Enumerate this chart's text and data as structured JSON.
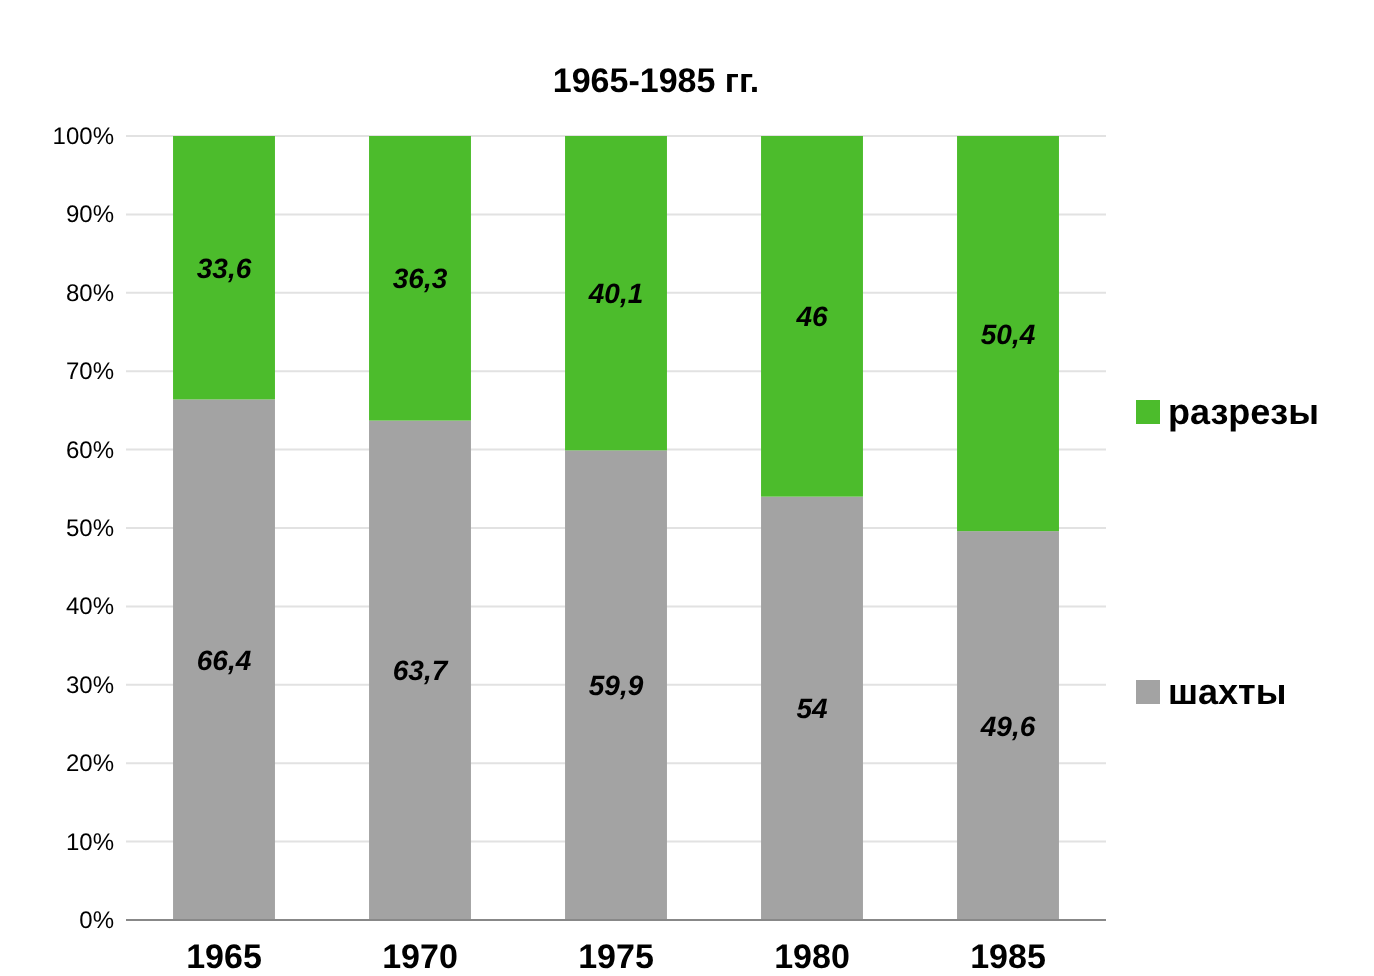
{
  "chart_data": {
    "type": "bar",
    "title": "1965-1985 гг.",
    "categories": [
      "1965",
      "1970",
      "1975",
      "1980",
      "1985"
    ],
    "stacked": true,
    "series": [
      {
        "name": "шахты",
        "color": "#a3a3a3",
        "values": [
          66.4,
          63.7,
          59.9,
          54,
          49.6
        ],
        "value_labels": [
          "66,4",
          "63,7",
          "59,9",
          "54",
          "49,6"
        ]
      },
      {
        "name": "разрезы",
        "color": "#4cbc2c",
        "values": [
          33.6,
          36.3,
          40.1,
          46,
          50.4
        ],
        "value_labels": [
          "33,6",
          "36,3",
          "40,1",
          "46",
          "50,4"
        ]
      }
    ],
    "ylim": [
      0,
      100
    ],
    "yticks": [
      {
        "value": 0,
        "label": "0%"
      },
      {
        "value": 10,
        "label": "10%"
      },
      {
        "value": 20,
        "label": "20%"
      },
      {
        "value": 30,
        "label": "30%"
      },
      {
        "value": 40,
        "label": "40%"
      },
      {
        "value": 50,
        "label": "50%"
      },
      {
        "value": 60,
        "label": "60%"
      },
      {
        "value": 70,
        "label": "70%"
      },
      {
        "value": 80,
        "label": "80%"
      },
      {
        "value": 90,
        "label": "90%"
      },
      {
        "value": 100,
        "label": "100%"
      }
    ],
    "grid": "y",
    "legend": "right"
  }
}
